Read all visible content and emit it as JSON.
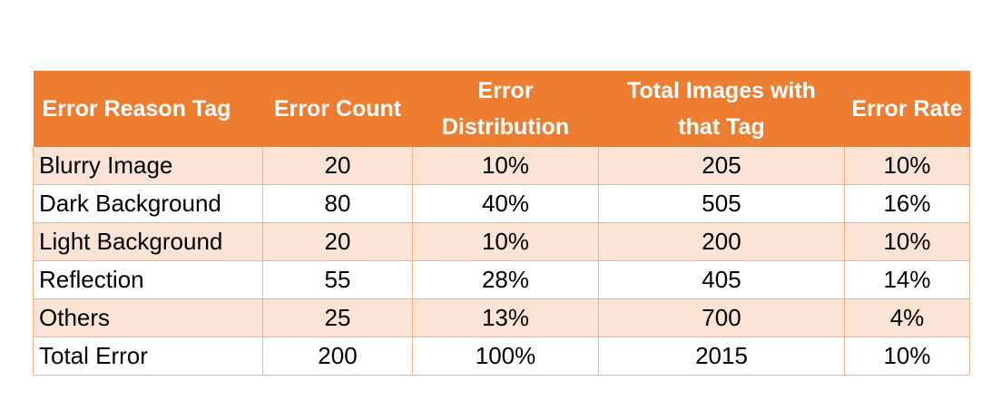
{
  "table": {
    "headers": [
      "Error Reason Tag",
      "Error Count",
      "Error Distribution",
      "Total Images with that Tag",
      "Error Rate"
    ],
    "rows": [
      [
        "Blurry Image",
        "20",
        "10%",
        "205",
        "10%"
      ],
      [
        "Dark Background",
        "80",
        "40%",
        "505",
        "16%"
      ],
      [
        "Light Background",
        "20",
        "10%",
        "200",
        "10%"
      ],
      [
        "Reflection",
        "55",
        "28%",
        "405",
        "14%"
      ],
      [
        "Others",
        "25",
        "13%",
        "700",
        "4%"
      ],
      [
        "Total Error",
        "200",
        "100%",
        "2015",
        "10%"
      ]
    ]
  },
  "colors": {
    "header_background": "#ED7D31",
    "header_text": "#FFFFFF",
    "shaded_row": "#FBE4D5",
    "border": "#F4B183"
  }
}
